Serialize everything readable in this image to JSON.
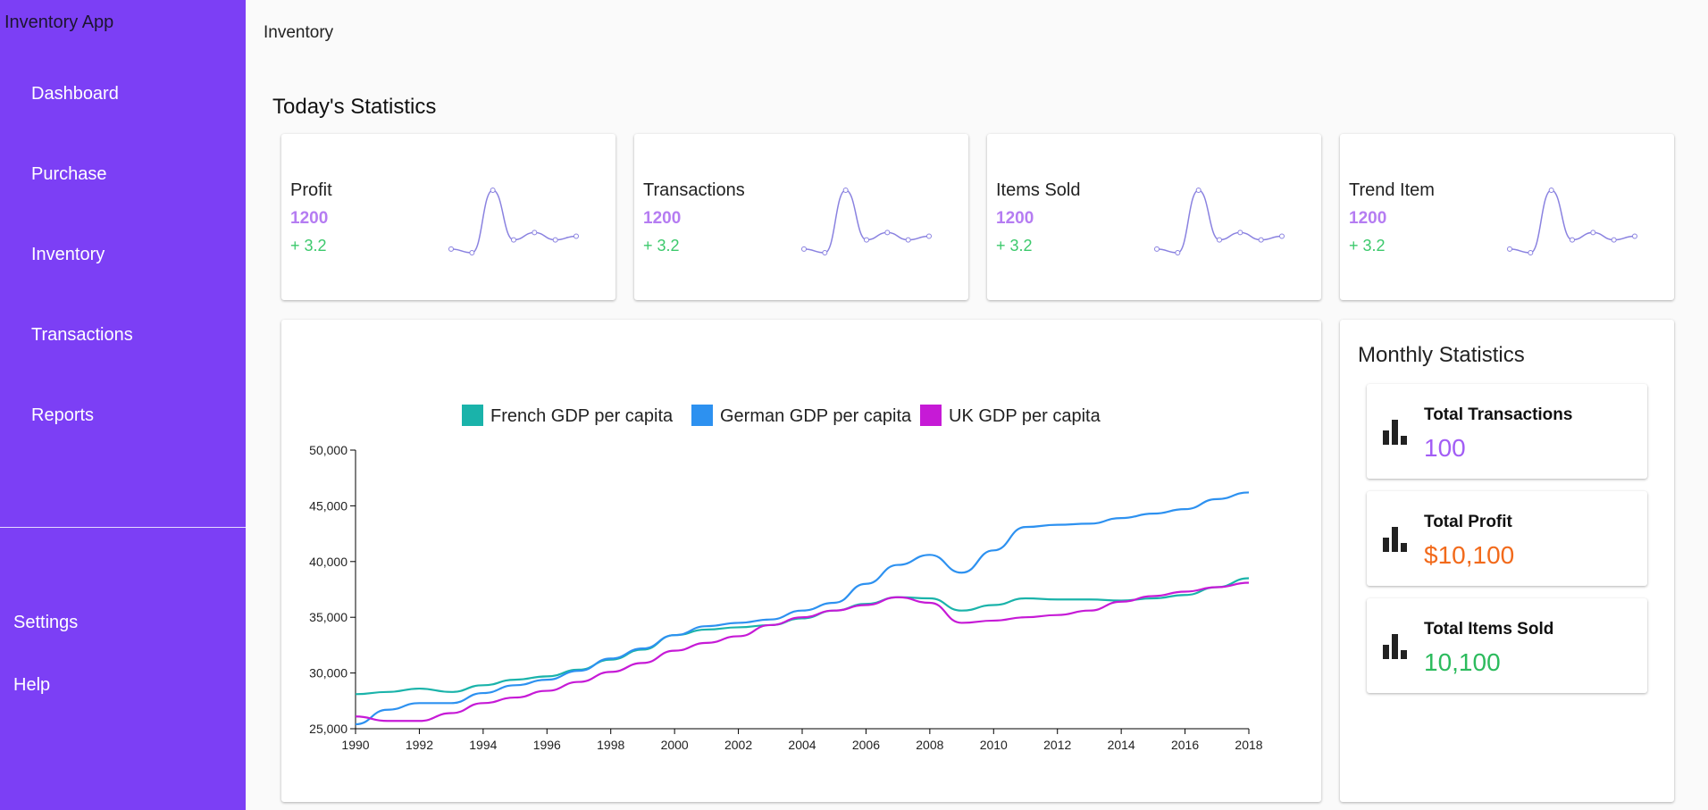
{
  "sidebar": {
    "app_title": "Inventory App",
    "items": [
      {
        "label": "Dashboard"
      },
      {
        "label": "Purchase"
      },
      {
        "label": "Inventory"
      },
      {
        "label": "Transactions"
      },
      {
        "label": "Reports"
      }
    ],
    "bottom_items": [
      {
        "label": "Settings"
      },
      {
        "label": "Help"
      }
    ]
  },
  "header": {
    "title": "Inventory"
  },
  "today": {
    "title": "Today's Statistics",
    "cards": [
      {
        "label": "Profit",
        "value": "1200",
        "change": "+ 3.2"
      },
      {
        "label": "Transactions",
        "value": "1200",
        "change": "+ 3.2"
      },
      {
        "label": "Items Sold",
        "value": "1200",
        "change": "+ 3.2"
      },
      {
        "label": "Trend Item",
        "value": "1200",
        "change": "+ 3.2"
      }
    ],
    "sparkline_values": [
      3,
      1,
      35,
      8,
      12,
      8,
      10
    ]
  },
  "monthly": {
    "title": "Monthly Statistics",
    "items": [
      {
        "label": "Total Transactions",
        "value": "100",
        "color": "#a25df5",
        "icon": "bar-chart-icon"
      },
      {
        "label": "Total Profit",
        "value": "$10,100",
        "color": "#f26a1b",
        "icon": "bar-chart-icon"
      },
      {
        "label": "Total Items Sold",
        "value": "10,100",
        "color": "#2cbb5d",
        "icon": "bar-chart-icon"
      }
    ]
  },
  "colors": {
    "sidebar": "#7c3ff5",
    "accent_value": "#b57cf2",
    "positive": "#3cc96c",
    "sparkline": "#8a82e0"
  },
  "chart_data": {
    "type": "line",
    "title": "",
    "xlabel": "",
    "ylabel": "",
    "legend_position": "top",
    "grid": false,
    "xlim": [
      1990,
      2018
    ],
    "ylim": [
      25000,
      50000
    ],
    "x_ticks": [
      "1990",
      "1992",
      "1994",
      "1996",
      "1998",
      "2000",
      "2002",
      "2004",
      "2006",
      "2008",
      "2010",
      "2012",
      "2014",
      "2016",
      "2018"
    ],
    "y_ticks": [
      "25,000",
      "30,000",
      "35,000",
      "40,000",
      "45,000",
      "50,000"
    ],
    "x": [
      1990,
      1991,
      1992,
      1993,
      1994,
      1995,
      1996,
      1997,
      1998,
      1999,
      2000,
      2001,
      2002,
      2003,
      2004,
      2005,
      2006,
      2007,
      2008,
      2009,
      2010,
      2011,
      2012,
      2013,
      2014,
      2015,
      2016,
      2017,
      2018
    ],
    "series": [
      {
        "name": "French GDP per capita",
        "color": "#1ab3aa",
        "values": [
          28100,
          28300,
          28600,
          28300,
          28900,
          29400,
          29700,
          30300,
          31200,
          32100,
          33400,
          33900,
          34100,
          34300,
          34900,
          35600,
          36200,
          36800,
          36700,
          35600,
          36100,
          36700,
          36600,
          36600,
          36500,
          36700,
          37000,
          37700,
          38500
        ]
      },
      {
        "name": "German GDP per capita",
        "color": "#2d91f0",
        "values": [
          25400,
          26700,
          27300,
          27300,
          28200,
          28900,
          29400,
          30200,
          31300,
          32200,
          33400,
          34200,
          34500,
          34800,
          35600,
          36300,
          38000,
          39700,
          40600,
          39000,
          41000,
          43100,
          43300,
          43400,
          43900,
          44300,
          44700,
          45600,
          46200
        ]
      },
      {
        "name": "UK GDP per capita",
        "color": "#c61ad6",
        "values": [
          26100,
          25700,
          25700,
          26400,
          27300,
          27800,
          28400,
          29200,
          30100,
          30900,
          32000,
          32700,
          33300,
          34300,
          35000,
          35600,
          36100,
          36800,
          36300,
          34500,
          34700,
          35000,
          35200,
          35600,
          36400,
          36900,
          37300,
          37700,
          38100
        ]
      }
    ]
  }
}
